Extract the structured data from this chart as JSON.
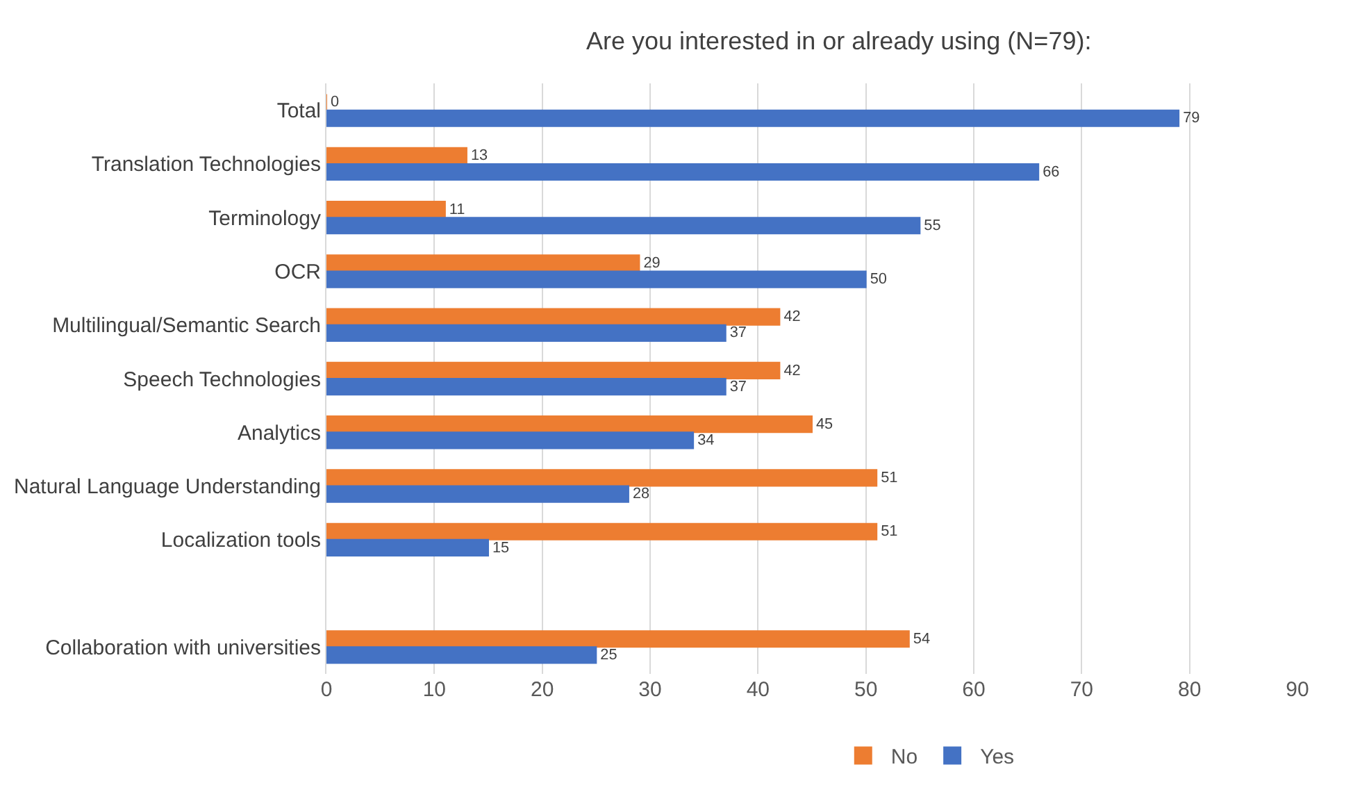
{
  "chart_data": {
    "type": "bar",
    "orientation": "horizontal",
    "title": "Are you interested in or already using (N=79):",
    "categories": [
      "Total",
      "Translation Technologies",
      "Terminology",
      "OCR",
      "Multilingual/Semantic Search",
      "Speech Technologies",
      "Analytics",
      "Natural Language Understanding",
      "Localization tools",
      null,
      "Collaboration with universities"
    ],
    "series": [
      {
        "name": "No",
        "color": "#ed7d31",
        "values": [
          0,
          13,
          11,
          29,
          42,
          42,
          45,
          51,
          51,
          null,
          54
        ]
      },
      {
        "name": "Yes",
        "color": "#4472c4",
        "values": [
          79,
          66,
          55,
          50,
          37,
          37,
          34,
          28,
          15,
          null,
          25
        ]
      }
    ],
    "xlim": [
      0,
      90
    ],
    "xticks": [
      0,
      10,
      20,
      30,
      40,
      50,
      60,
      70,
      80,
      90
    ],
    "grid": "x",
    "legend": "bottom",
    "data_labels": true
  }
}
